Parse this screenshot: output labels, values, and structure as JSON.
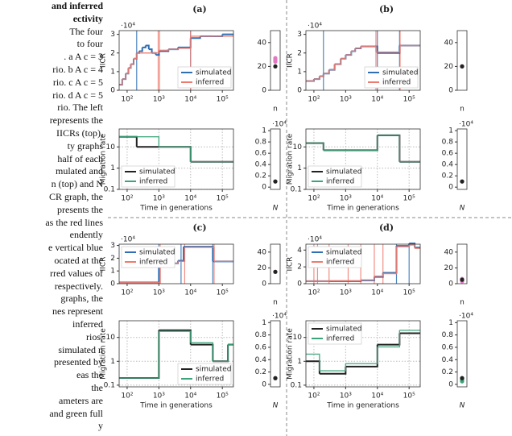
{
  "caption": {
    "lines": [
      "and inferred",
      "ectivity",
      "The four",
      "to four",
      ". a A c = 3",
      "rio. b A c = 4",
      "rio. c A c = 5",
      "rio. d A c = 5",
      "rio. The left",
      "represents the",
      "IICRs (top),",
      "ty graphs",
      "half of each",
      "mulated and",
      "n (top) and N",
      "CR graph, the",
      "presents the",
      "as the red lines",
      "endently",
      "e vertical blue",
      "ocated at the",
      "rred values of",
      "respectively.",
      "graphs, the",
      "nes represent",
      "inferred",
      "rios,",
      "simulated n",
      "presented by",
      "eas the",
      "the",
      "ameters are",
      "and green full",
      "y"
    ]
  },
  "chart_data": [
    {
      "type": "step",
      "title": "(a)",
      "ylabel": "IICR",
      "offset_label": "·10⁴",
      "xscale": "log",
      "xlim": [
        56,
        224000
      ],
      "xticks": [
        {
          "value": 100,
          "label": "10²"
        },
        {
          "value": 1000,
          "label": "10³"
        },
        {
          "value": 10000,
          "label": "10⁴"
        },
        {
          "value": 100000,
          "label": "10⁵"
        }
      ],
      "ylim": [
        0,
        3.2
      ],
      "yticks": [
        0,
        1,
        2,
        3
      ],
      "grid": false,
      "legend": "lower right",
      "series": [
        {
          "name": "simulated",
          "color": "#2f6fb3",
          "x": [
            56,
            70,
            90,
            110,
            130,
            160,
            200,
            240,
            300,
            380,
            480,
            600,
            800,
            1000,
            2000,
            4000,
            10000,
            20000,
            50000,
            100000
          ],
          "values": [
            0.3,
            0.6,
            0.9,
            1.2,
            1.4,
            1.7,
            2.0,
            2.1,
            2.3,
            2.4,
            2.2,
            2.0,
            1.9,
            2.1,
            2.2,
            2.3,
            2.8,
            2.9,
            2.9,
            3.0
          ],
          "change_times": [
            200,
            10000
          ]
        },
        {
          "name": "inferred",
          "color": "#ef7b6e",
          "x": [
            56,
            70,
            90,
            110,
            130,
            160,
            200,
            1000,
            2000,
            4000,
            10000
          ],
          "values": [
            0.3,
            0.6,
            0.9,
            1.2,
            1.4,
            1.7,
            2.0,
            2.15,
            2.2,
            2.25,
            2.9
          ],
          "change_times": [
            950,
            1050,
            10000
          ]
        }
      ]
    },
    {
      "type": "dot",
      "xlabel": "n",
      "ylim": [
        0,
        50
      ],
      "yticks": [
        0,
        20,
        40
      ],
      "series": [
        {
          "color": "#222222",
          "values": [
            20
          ]
        },
        {
          "color": "#e377c2",
          "values": [
            24,
            25,
            26,
            27
          ]
        }
      ]
    },
    {
      "type": "step",
      "ylabel": "Migration rate",
      "xlabel": "Time in generations",
      "xscale": "log",
      "yscale": "log",
      "xlim": [
        56,
        224000
      ],
      "xticks": [
        {
          "value": 100,
          "label": "10²"
        },
        {
          "value": 1000,
          "label": "10³"
        },
        {
          "value": 10000,
          "label": "10⁴"
        },
        {
          "value": 100000,
          "label": "10⁵"
        }
      ],
      "ylim": [
        0.1,
        70
      ],
      "yticks": [
        0.1,
        1,
        10
      ],
      "grid": true,
      "legend": "lower left",
      "series": [
        {
          "name": "simulated",
          "color": "#222222",
          "x": [
            56,
            200,
            10000
          ],
          "values": [
            30,
            10,
            2
          ]
        },
        {
          "name": "inferred",
          "color": "#3aa57a",
          "x": [
            56,
            1000,
            10000
          ],
          "values": [
            30,
            10,
            2
          ]
        }
      ]
    },
    {
      "type": "dot",
      "xlabel": "N",
      "offset_label": "·10⁴",
      "ylim": [
        -0.04,
        1.03
      ],
      "yticks": [
        0,
        0.2,
        0.4,
        0.6,
        0.8,
        1
      ],
      "series": [
        {
          "color": "#222222",
          "values": [
            0.1
          ]
        },
        {
          "color": "#3aa57a",
          "values": [
            0.1
          ]
        }
      ]
    },
    {
      "type": "step",
      "title": "(b)",
      "ylabel": "IICR",
      "offset_label": "·10⁴",
      "xscale": "log",
      "xlim": [
        56,
        224000
      ],
      "xticks": [
        {
          "value": 100,
          "label": "10²"
        },
        {
          "value": 1000,
          "label": "10³"
        },
        {
          "value": 10000,
          "label": "10⁴"
        },
        {
          "value": 100000,
          "label": "10⁵"
        }
      ],
      "ylim": [
        0,
        3.2
      ],
      "yticks": [
        0,
        1,
        2,
        3
      ],
      "grid": false,
      "legend": "lower right",
      "series": [
        {
          "name": "simulated",
          "color": "#2f6fb3",
          "x": [
            56,
            100,
            150,
            200,
            300,
            450,
            700,
            1000,
            1500,
            2000,
            3000,
            10000,
            50000
          ],
          "values": [
            0.5,
            0.6,
            0.75,
            0.9,
            1.1,
            1.4,
            1.7,
            1.9,
            2.1,
            2.25,
            2.35,
            2.0,
            2.4
          ],
          "change_times": [
            200,
            10000,
            50000
          ]
        },
        {
          "name": "inferred",
          "color": "#ef7b6e",
          "x": [
            56,
            100,
            150,
            200,
            300,
            450,
            700,
            1000,
            1500,
            2000,
            3000,
            9000,
            52000
          ],
          "values": [
            0.5,
            0.6,
            0.75,
            0.9,
            1.1,
            1.4,
            1.7,
            1.9,
            2.1,
            2.25,
            2.35,
            2.05,
            2.4
          ],
          "change_times": [
            9000,
            52000
          ]
        }
      ]
    },
    {
      "type": "dot",
      "xlabel": "n",
      "ylim": [
        0,
        50
      ],
      "yticks": [
        0,
        20,
        40
      ],
      "series": [
        {
          "color": "#222222",
          "values": [
            20
          ]
        },
        {
          "color": "#e377c2",
          "values": [
            20
          ]
        }
      ]
    },
    {
      "type": "step",
      "ylabel": "Migration rate",
      "xlabel": "Time in generations",
      "xscale": "log",
      "yscale": "log",
      "xlim": [
        56,
        224000
      ],
      "xticks": [
        {
          "value": 100,
          "label": "10²"
        },
        {
          "value": 1000,
          "label": "10³"
        },
        {
          "value": 10000,
          "label": "10⁴"
        },
        {
          "value": 100000,
          "label": "10⁵"
        }
      ],
      "ylim": [
        0.1,
        70
      ],
      "yticks": [
        0.1,
        1,
        10
      ],
      "grid": true,
      "legend": "lower left",
      "series": [
        {
          "name": "simulated",
          "color": "#222222",
          "x": [
            56,
            200,
            10000,
            50000
          ],
          "values": [
            15,
            7,
            35,
            2
          ]
        },
        {
          "name": "inferred",
          "color": "#3aa57a",
          "x": [
            56,
            200,
            10000,
            50000
          ],
          "values": [
            15,
            7,
            35,
            2
          ]
        }
      ]
    },
    {
      "type": "dot",
      "xlabel": "N",
      "offset_label": "·10⁴",
      "ylim": [
        -0.04,
        1.03
      ],
      "yticks": [
        0,
        0.2,
        0.4,
        0.6,
        0.8,
        1
      ],
      "series": [
        {
          "color": "#222222",
          "values": [
            0.1
          ]
        },
        {
          "color": "#3aa57a",
          "values": [
            0.1
          ]
        }
      ]
    },
    {
      "type": "step",
      "title": "(c)",
      "ylabel": "IICR",
      "offset_label": "·10⁴",
      "xscale": "log",
      "xlim": [
        56,
        224000
      ],
      "xticks": [
        {
          "value": 100,
          "label": "10²"
        },
        {
          "value": 1000,
          "label": "10³"
        },
        {
          "value": 10000,
          "label": "10⁴"
        },
        {
          "value": 100000,
          "label": "10⁵"
        }
      ],
      "ylim": [
        0,
        3.1
      ],
      "yticks": [
        0,
        1,
        2,
        3
      ],
      "grid": false,
      "legend": "upper left",
      "series": [
        {
          "name": "simulated",
          "color": "#2f6fb3",
          "x": [
            56,
            1000,
            2000,
            4000,
            6000,
            50000
          ],
          "values": [
            0.1,
            1.5,
            1.6,
            1.8,
            2.9,
            1.75
          ],
          "change_times": [
            1000,
            5000,
            50000
          ]
        },
        {
          "name": "inferred",
          "color": "#ef7b6e",
          "x": [
            56,
            1100,
            2000,
            4000,
            6500,
            55000
          ],
          "values": [
            0.1,
            1.45,
            1.6,
            1.75,
            2.85,
            1.75
          ],
          "change_times": [
            1100,
            6500,
            55000
          ]
        }
      ]
    },
    {
      "type": "dot",
      "xlabel": "n",
      "ylim": [
        0,
        50
      ],
      "yticks": [
        0,
        20,
        40
      ],
      "series": [
        {
          "color": "#222222",
          "values": [
            15
          ]
        },
        {
          "color": "#e377c2",
          "values": [
            15
          ]
        }
      ]
    },
    {
      "type": "step",
      "ylabel": "Migration rate",
      "xlabel": "Time in generations",
      "xscale": "log",
      "yscale": "log",
      "xlim": [
        56,
        224000
      ],
      "xticks": [
        {
          "value": 100,
          "label": "10²"
        },
        {
          "value": 1000,
          "label": "10³"
        },
        {
          "value": 10000,
          "label": "10⁴"
        },
        {
          "value": 100000,
          "label": "10⁵"
        }
      ],
      "ylim": [
        0.085,
        50
      ],
      "yticks": [
        0.1,
        1,
        10
      ],
      "grid": true,
      "legend": "lower right",
      "series": [
        {
          "name": "simulated",
          "color": "#222222",
          "x": [
            56,
            1000,
            10000,
            50000,
            150000
          ],
          "values": [
            0.2,
            20,
            5,
            1,
            5
          ]
        },
        {
          "name": "inferred",
          "color": "#3aa57a",
          "x": [
            56,
            1000,
            10000,
            50000,
            150000
          ],
          "values": [
            0.2,
            18,
            6,
            1,
            5
          ]
        }
      ]
    },
    {
      "type": "dot",
      "xlabel": "N",
      "offset_label": "·10⁴",
      "ylim": [
        -0.04,
        1.03
      ],
      "yticks": [
        0,
        0.2,
        0.4,
        0.6,
        0.8,
        1
      ],
      "series": [
        {
          "color": "#222222",
          "values": [
            0.1
          ]
        },
        {
          "color": "#3aa57a",
          "values": [
            0.1
          ]
        }
      ]
    },
    {
      "type": "step",
      "title": "(d)",
      "ylabel": "IICR",
      "offset_label": "·10⁴",
      "xscale": "log",
      "xlim": [
        56,
        224000
      ],
      "xticks": [
        {
          "value": 100,
          "label": "10²"
        },
        {
          "value": 1000,
          "label": "10³"
        },
        {
          "value": 10000,
          "label": "10⁴"
        },
        {
          "value": 100000,
          "label": "10⁵"
        }
      ],
      "ylim": [
        0,
        4.7
      ],
      "yticks": [
        0,
        2,
        4
      ],
      "grid": false,
      "legend": "upper left",
      "series": [
        {
          "name": "simulated",
          "color": "#2f6fb3",
          "x": [
            56,
            300,
            3000,
            8000,
            15000,
            40000,
            100000,
            150000
          ],
          "values": [
            0.3,
            0.3,
            0.4,
            0.8,
            1.3,
            4.5,
            4.8,
            4.3
          ],
          "change_times": [
            40000,
            100000
          ]
        },
        {
          "name": "inferred",
          "color": "#ef7b6e",
          "x": [
            56,
            300,
            3000,
            8000,
            15000,
            40000,
            100000,
            150000
          ],
          "values": [
            0.3,
            0.35,
            0.45,
            0.9,
            1.2,
            4.4,
            4.6,
            4.2
          ],
          "change_times": [
            100,
            130,
            300,
            1200,
            3000,
            8000,
            15000
          ]
        }
      ]
    },
    {
      "type": "dot",
      "xlabel": "n",
      "ylim": [
        0,
        50
      ],
      "yticks": [
        0,
        20,
        40
      ],
      "series": [
        {
          "color": "#222222",
          "values": [
            5
          ]
        },
        {
          "color": "#e377c2",
          "values": [
            3,
            4,
            5,
            6
          ]
        }
      ]
    },
    {
      "type": "step",
      "ylabel": "Migration rate",
      "xlabel": "Time in generations",
      "xscale": "log",
      "yscale": "log",
      "xlim": [
        56,
        224000
      ],
      "xticks": [
        {
          "value": 100,
          "label": "10²"
        },
        {
          "value": 1000,
          "label": "10³"
        },
        {
          "value": 10000,
          "label": "10⁴"
        },
        {
          "value": 100000,
          "label": "10⁵"
        }
      ],
      "ylim": [
        0.085,
        50
      ],
      "yticks": [
        0.1,
        1,
        10
      ],
      "grid": true,
      "legend": "upper left",
      "series": [
        {
          "name": "simulated",
          "color": "#222222",
          "x": [
            56,
            150,
            1000,
            10000,
            50000
          ],
          "values": [
            1,
            0.3,
            0.6,
            5,
            15
          ]
        },
        {
          "name": "inferred",
          "color": "#3aa57a",
          "x": [
            56,
            150,
            1000,
            10000,
            50000
          ],
          "values": [
            2,
            0.4,
            0.8,
            4,
            20
          ]
        }
      ]
    },
    {
      "type": "dot",
      "xlabel": "N",
      "offset_label": "·10⁴",
      "ylim": [
        -0.04,
        1.03
      ],
      "yticks": [
        0,
        0.2,
        0.4,
        0.6,
        0.8,
        1
      ],
      "series": [
        {
          "color": "#222222",
          "values": [
            0.1
          ]
        },
        {
          "color": "#3aa57a",
          "values": [
            0.05,
            0.08,
            0.1
          ]
        }
      ]
    }
  ]
}
